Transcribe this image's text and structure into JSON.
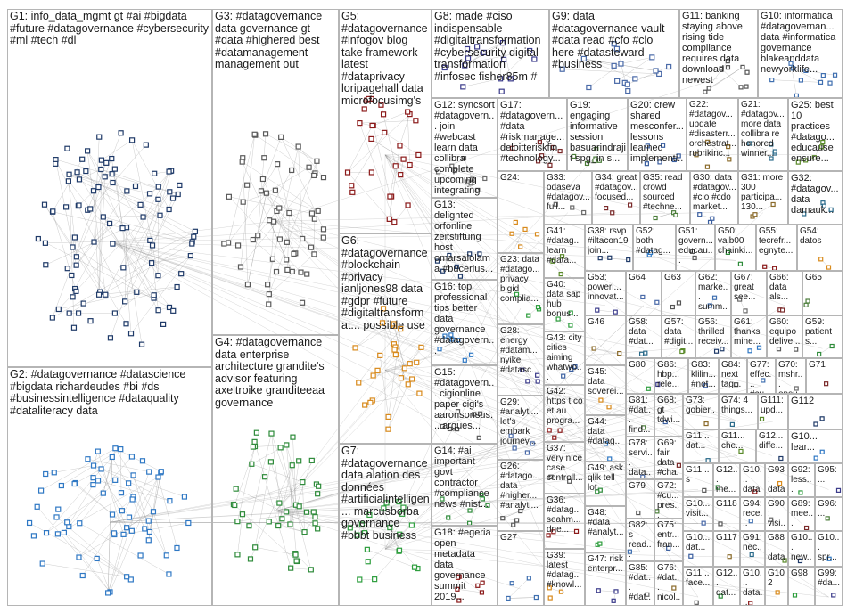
{
  "groups": [
    {
      "label": "G1: info_data_mgmt gt #ai #bigdata #future #datagovernance #cybersecurity #ml #tech #dl"
    },
    {
      "label": "G2: #datagovernance #datascience #bigdata richardeudes #bi #ds #businessintelligence #dataquality #dataliteracy data"
    },
    {
      "label": "G3: #datagovernance data governance gt #data #highered best #datamanagement management out"
    },
    {
      "label": "G4: #datagovernance data enterprise architecture grandite's advisor featuring axeltroike granditeeaa governance"
    },
    {
      "label": "G5: #datagovernance #infogov blog take framework latest #dataprivacy loripagehall data microfocusimg's"
    },
    {
      "label": "G6: #datagovernance #blockchain #privacy ianljones98 data #gdpr #future #digitaltransformat... possible use"
    },
    {
      "label": "G7: #datagovernance data alation des données #artificialintelligen... marcusborba governance #bbbt business"
    },
    {
      "label": "G8: made #ciso indispensable #digitaltransformation #cybersecurity digital transformation #infosec fisher85m #"
    },
    {
      "label": "G9: data #datagovernance vault #data read #cfo #clo here #datasteward #business"
    },
    {
      "label": "G11: banking staying above rising tide compliance requires data download newest"
    },
    {
      "label": "G10: informatica #datagovernan... data #informatica governance blakeanddata newyorklife..."
    },
    {
      "label": "G12: syncsort #datagovern... join #webcast learn data collibra complete upcoming integrating"
    },
    {
      "label": "G17: #datagovern... #data #riskmanage... deloitteriskfin #technology..."
    },
    {
      "label": "G19: engaging informative session basuarindrajit spg_in s..."
    },
    {
      "label": "G20: crew shared mesconfer... lessons learned implementi..."
    },
    {
      "label": "G22: #datagov... update #disasterr... orchestrat... rubrikinc..."
    },
    {
      "label": "G21: #datagov... more data collibra re honored winner..."
    },
    {
      "label": "G25: best 10 practices #datago... educause ensure..."
    },
    {
      "label": "G13: delighted orfonline zeitstiftung host omarsalolama #bucerius..."
    },
    {
      "label": "G16: top professional tips better data governance #datagovern..."
    },
    {
      "label": "G15: #datagovern... cigionline paper cigi's aaronsonsus... argues..."
    },
    {
      "label": "G14: #ai important govt contractor #compliance news #nist..."
    },
    {
      "label": "G18: #egeria open metadata data governance summit 2019..."
    },
    {
      "label": "G24:"
    },
    {
      "label": "G23: data #datago... privacy bigid complia..."
    },
    {
      "label": "G28: energy #datam... nyike #datasc..."
    },
    {
      "label": "G29: #analyti... let's embark journey..."
    },
    {
      "label": "G26: #datago... data #higher... #analyti..."
    },
    {
      "label": "G27"
    },
    {
      "label": "G33: odaseva #datagov... full..."
    },
    {
      "label": "G34: great #datagov... focused..."
    },
    {
      "label": "G35: read crowd sourced #techne..."
    },
    {
      "label": "G30: data #datagov... #cio #cdo market..."
    },
    {
      "label": "G31: more 300 participa... 130..."
    },
    {
      "label": "G32: #datagov... data damauk..."
    },
    {
      "label": "G41: #datag... learn #data..."
    },
    {
      "label": "G38: rsvp #iltacon19 join..."
    },
    {
      "label": "G52: both #datag..."
    },
    {
      "label": "G51: govern... educau..."
    },
    {
      "label": "G50: valb00 chainki..."
    },
    {
      "label": "G55: tecrefr... egnyte..."
    },
    {
      "label": "G54: datos"
    },
    {
      "label": "G40: data sap hub bonus..."
    },
    {
      "label": "G53: poweri... innovat..."
    },
    {
      "label": "G64"
    },
    {
      "label": "G63"
    },
    {
      "label": "G62: marke... summ..."
    },
    {
      "label": "G67: great see..."
    },
    {
      "label": "G66: data als..."
    },
    {
      "label": "G65"
    },
    {
      "label": "G43: city cities aiming whatwo..."
    },
    {
      "label": "G46"
    },
    {
      "label": "G58: data #dat..."
    },
    {
      "label": "G57: data #digit..."
    },
    {
      "label": "G56: thrilled receiv..."
    },
    {
      "label": "G61: thanks mine..."
    },
    {
      "label": "G60: equipo delive..."
    },
    {
      "label": "G59: patient s..."
    },
    {
      "label": "G42: https t co et au progra..."
    },
    {
      "label": "G45: data soverei..."
    },
    {
      "label": "G80"
    },
    {
      "label": "G86: hbp... rele..."
    },
    {
      "label": "G83: klilin... #not..."
    },
    {
      "label": "G84: next tag..."
    },
    {
      "label": "G77: effec... #cu..."
    },
    {
      "label": "G70: mshr... ensu..."
    },
    {
      "label": "G71"
    },
    {
      "label": "G81: #dat... find..."
    },
    {
      "label": "G68: gt tdwi..."
    },
    {
      "label": "G73: gobier..."
    },
    {
      "label": "G74: 4 things..."
    },
    {
      "label": "G111: upd..."
    },
    {
      "label": "G112"
    },
    {
      "label": "G44: data #datag..."
    },
    {
      "label": "G37: very nice case controll..."
    },
    {
      "label": "G49: ask qlik tell lot"
    },
    {
      "label": "G36: #datag... seahm... dne..."
    },
    {
      "label": "G39: latest #datag... #knowl..."
    },
    {
      "label": "G48: #data #analyt..."
    },
    {
      "label": "G47: risk enterpr..."
    },
    {
      "label": "G78: servi... data..."
    },
    {
      "label": "G79"
    },
    {
      "label": "G82: s read..."
    },
    {
      "label": "G85: #dat... #dat..."
    },
    {
      "label": "G69: fair data #cha..."
    },
    {
      "label": "G72: #cu... pres..."
    },
    {
      "label": "G75: entr... fran..."
    },
    {
      "label": "G76: #dat... nicol..."
    },
    {
      "label": "G11... dat..."
    },
    {
      "label": "G11... che..."
    },
    {
      "label": "G12... diffe..."
    },
    {
      "label": "G10... lear..."
    },
    {
      "label": "G11... s"
    },
    {
      "label": "G12... me..."
    },
    {
      "label": "G10... data"
    },
    {
      "label": "G93: data"
    },
    {
      "label": "G92: less..."
    },
    {
      "label": "G95: ..."
    },
    {
      "label": "G10... visit..."
    },
    {
      "label": "G118"
    },
    {
      "label": "G94: rece..."
    },
    {
      "label": "G90: visi..."
    },
    {
      "label": "G89: mee..."
    },
    {
      "label": "G96: ..."
    },
    {
      "label": "G10... dat..."
    },
    {
      "label": "G117"
    },
    {
      "label": "G91: nec..."
    },
    {
      "label": "G88: data..."
    },
    {
      "label": "G10... new..."
    },
    {
      "label": "G10... spr..."
    },
    {
      "label": "G11... face..."
    },
    {
      "label": "G12... dat..."
    },
    {
      "label": "G10... data..."
    },
    {
      "label": "G102"
    },
    {
      "label": "G98"
    },
    {
      "label": "G99: #da..."
    }
  ]
}
